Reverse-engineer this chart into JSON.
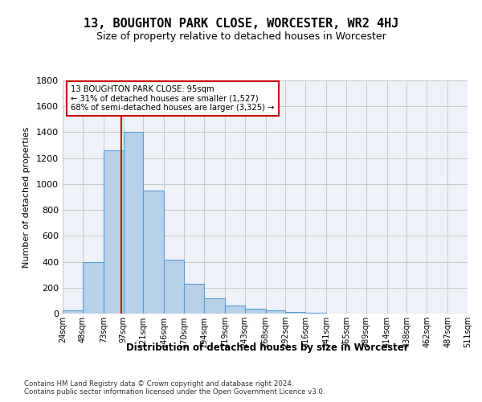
{
  "title": "13, BOUGHTON PARK CLOSE, WORCESTER, WR2 4HJ",
  "subtitle": "Size of property relative to detached houses in Worcester",
  "xlabel": "Distribution of detached houses by size in Worcester",
  "ylabel": "Number of detached properties",
  "footnote1": "Contains HM Land Registry data © Crown copyright and database right 2024.",
  "footnote2": "Contains public sector information licensed under the Open Government Licence v3.0.",
  "annotation_line1": "13 BOUGHTON PARK CLOSE: 95sqm",
  "annotation_line2": "← 31% of detached houses are smaller (1,527)",
  "annotation_line3": "68% of semi-detached houses are larger (3,325) →",
  "bar_color": "#b8d0e8",
  "bar_edge_color": "#5b9bd5",
  "grid_color": "#c8c8c8",
  "bg_color": "#eef2f8",
  "vline_color": "#cc0000",
  "vline_x": 95,
  "bin_edges": [
    24,
    48,
    73,
    97,
    121,
    146,
    170,
    194,
    219,
    243,
    268,
    292,
    316,
    341,
    365,
    389,
    414,
    438,
    462,
    487,
    511
  ],
  "categories": [
    "24sqm",
    "48sqm",
    "73sqm",
    "97sqm",
    "121sqm",
    "146sqm",
    "170sqm",
    "194sqm",
    "219sqm",
    "243sqm",
    "268sqm",
    "292sqm",
    "316sqm",
    "341sqm",
    "365sqm",
    "389sqm",
    "414sqm",
    "438sqm",
    "462sqm",
    "487sqm",
    "511sqm"
  ],
  "values": [
    25,
    395,
    1260,
    1400,
    950,
    415,
    230,
    115,
    65,
    40,
    22,
    10,
    5,
    2,
    1,
    0,
    0,
    0,
    0,
    0
  ],
  "ylim": [
    0,
    1800
  ],
  "yticks": [
    0,
    200,
    400,
    600,
    800,
    1000,
    1200,
    1400,
    1600,
    1800
  ]
}
